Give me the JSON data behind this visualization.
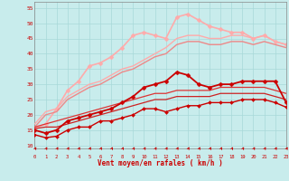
{
  "xlabel": "Vent moyen/en rafales ( km/h )",
  "bg_color": "#c8ecec",
  "grid_color": "#a8d8d8",
  "ylim": [
    9,
    57
  ],
  "xlim": [
    0,
    23
  ],
  "yticks": [
    10,
    15,
    20,
    25,
    30,
    35,
    40,
    45,
    50,
    55
  ],
  "xticks": [
    0,
    1,
    2,
    3,
    4,
    5,
    6,
    7,
    8,
    9,
    10,
    11,
    12,
    13,
    14,
    15,
    16,
    17,
    18,
    19,
    20,
    21,
    22,
    23
  ],
  "lines": [
    {
      "x": [
        0,
        1,
        2,
        3,
        4,
        5,
        6,
        7,
        8,
        9,
        10,
        11,
        12,
        13,
        14,
        15,
        16,
        17,
        18,
        19,
        20,
        21,
        22,
        23
      ],
      "y": [
        13.5,
        12.5,
        13,
        15,
        16,
        16,
        18,
        18,
        19,
        20,
        22,
        22,
        21,
        22,
        23,
        23,
        24,
        24,
        24,
        25,
        25,
        25,
        24,
        22.5
      ],
      "color": "#cc0000",
      "lw": 1.0,
      "marker": "D",
      "ms": 2.0,
      "zorder": 5
    },
    {
      "x": [
        0,
        1,
        2,
        3,
        4,
        5,
        6,
        7,
        8,
        9,
        10,
        11,
        12,
        13,
        14,
        15,
        16,
        17,
        18,
        19,
        20,
        21,
        22,
        23
      ],
      "y": [
        15.5,
        16,
        16,
        17,
        18,
        19,
        20,
        21,
        22,
        23,
        24,
        25,
        25,
        26,
        26,
        26,
        26,
        27,
        27,
        27,
        27,
        27,
        26,
        25
      ],
      "color": "#cc2222",
      "lw": 0.9,
      "marker": null,
      "ms": 0,
      "zorder": 4
    },
    {
      "x": [
        0,
        1,
        2,
        3,
        4,
        5,
        6,
        7,
        8,
        9,
        10,
        11,
        12,
        13,
        14,
        15,
        16,
        17,
        18,
        19,
        20,
        21,
        22,
        23
      ],
      "y": [
        16,
        17,
        18,
        19,
        20,
        21,
        22,
        23,
        24,
        25,
        26,
        27,
        27,
        28,
        28,
        28,
        28,
        29,
        29,
        29,
        29,
        29,
        28,
        27
      ],
      "color": "#dd3333",
      "lw": 0.9,
      "marker": null,
      "ms": 0,
      "zorder": 4
    },
    {
      "x": [
        0,
        1,
        2,
        3,
        4,
        5,
        6,
        7,
        8,
        9,
        10,
        11,
        12,
        13,
        14,
        15,
        16,
        17,
        18,
        19,
        20,
        21,
        22,
        23
      ],
      "y": [
        15,
        14,
        15,
        18,
        19,
        20,
        21,
        22,
        24,
        26,
        29,
        30,
        31,
        34,
        33,
        30,
        29,
        30,
        30,
        31,
        31,
        31,
        31,
        24
      ],
      "color": "#cc0000",
      "lw": 1.3,
      "marker": "D",
      "ms": 2.5,
      "zorder": 6
    },
    {
      "x": [
        0,
        1,
        2,
        3,
        4,
        5,
        6,
        7,
        8,
        9,
        10,
        11,
        12,
        13,
        14,
        15,
        16,
        17,
        18,
        19,
        20,
        21,
        22,
        23
      ],
      "y": [
        16,
        20,
        21,
        25,
        27,
        29,
        30,
        32,
        34,
        35,
        37,
        39,
        40,
        43,
        44,
        44,
        43,
        43,
        44,
        44,
        43,
        44,
        43,
        42
      ],
      "color": "#ee8888",
      "lw": 1.0,
      "marker": null,
      "ms": 0,
      "zorder": 3
    },
    {
      "x": [
        0,
        1,
        2,
        3,
        4,
        5,
        6,
        7,
        8,
        9,
        10,
        11,
        12,
        13,
        14,
        15,
        16,
        17,
        18,
        19,
        20,
        21,
        22,
        23
      ],
      "y": [
        17,
        21,
        22,
        26,
        28,
        30,
        31,
        33,
        35,
        36,
        38,
        40,
        42,
        45,
        46,
        46,
        45,
        45,
        46,
        46,
        45,
        46,
        44,
        43
      ],
      "color": "#ffaaaa",
      "lw": 1.0,
      "marker": null,
      "ms": 0,
      "zorder": 3
    },
    {
      "x": [
        0,
        1,
        2,
        3,
        4,
        5,
        6,
        7,
        8,
        9,
        10,
        11,
        12,
        13,
        14,
        15,
        16,
        17,
        18,
        19,
        20,
        21,
        22,
        23
      ],
      "y": [
        15.5,
        17,
        22,
        28,
        31,
        36,
        37,
        39,
        42,
        46,
        47,
        46,
        45,
        52,
        53,
        51,
        49,
        48,
        47,
        47,
        45,
        46,
        44,
        43
      ],
      "color": "#ffaaaa",
      "lw": 1.2,
      "marker": "D",
      "ms": 2.5,
      "zorder": 2
    }
  ]
}
